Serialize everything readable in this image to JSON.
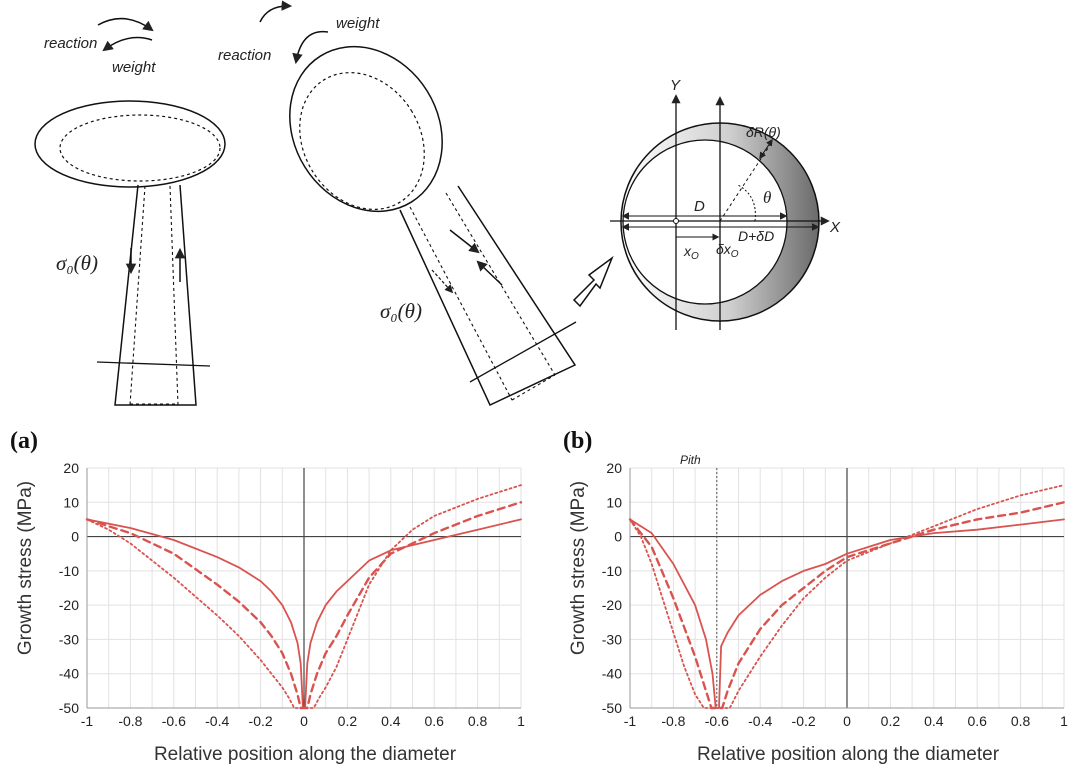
{
  "diagram": {
    "tree1": {
      "reaction_label": "reaction",
      "weight_label": "weight",
      "stress_label": "σ₀(θ)"
    },
    "tree2": {
      "reaction_label": "reaction",
      "weight_label": "weight",
      "stress_label": "σ₀(θ)"
    },
    "cross_section": {
      "y_axis_label": "Y",
      "x_axis_label": "X",
      "d_label": "D",
      "d_plus_label": "D+δD",
      "xo_label": "x",
      "xo_sub": "O",
      "dxo_label": "δx",
      "dxo_sub": "O",
      "theta_label": "θ",
      "dr_label": "δR(θ)"
    }
  },
  "chart_data": [
    {
      "panel_label": "(a)",
      "type": "line",
      "xlabel": "Relative position along the diameter",
      "ylabel": "Growth stress (MPa)",
      "xlim": [
        -1,
        1
      ],
      "ylim": [
        -50,
        20
      ],
      "xticks": [
        "-1",
        "-0.8",
        "-0.6",
        "-0.4",
        "-0.2",
        "0",
        "0.2",
        "0.4",
        "0.6",
        "0.8",
        "1"
      ],
      "yticks": [
        "20",
        "10",
        "0",
        "-10",
        "-20",
        "-30",
        "-40",
        "-50"
      ],
      "yticks_values": [
        20,
        10,
        0,
        -10,
        -20,
        -30,
        -40,
        -50
      ],
      "xticks_values": [
        -1,
        -0.8,
        -0.6,
        -0.4,
        -0.2,
        0,
        0.2,
        0.4,
        0.6,
        0.8,
        1
      ],
      "grid": true,
      "pith_label": "",
      "color": "#d9534f",
      "series": [
        {
          "style": "solid",
          "x": [
            -1,
            -0.8,
            -0.6,
            -0.4,
            -0.3,
            -0.2,
            -0.15,
            -0.1,
            -0.06,
            -0.03,
            -0.015,
            -0.005,
            0.005,
            0.015,
            0.03,
            0.06,
            0.1,
            0.15,
            0.2,
            0.3,
            0.4,
            0.6,
            0.8,
            1
          ],
          "y": [
            5,
            2.5,
            -1,
            -6,
            -9,
            -13,
            -16,
            -20,
            -25,
            -31,
            -37,
            -50,
            -50,
            -37,
            -31,
            -25,
            -20,
            -16,
            -13,
            -7,
            -4,
            -1,
            2,
            5
          ]
        },
        {
          "style": "dashed",
          "x": [
            -1,
            -0.8,
            -0.6,
            -0.4,
            -0.3,
            -0.2,
            -0.15,
            -0.1,
            -0.06,
            -0.03,
            -0.015,
            0.015,
            0.03,
            0.06,
            0.1,
            0.15,
            0.2,
            0.3,
            0.4,
            0.6,
            0.8,
            1
          ],
          "y": [
            5,
            1,
            -5,
            -14,
            -19,
            -25,
            -29,
            -34,
            -40,
            -46,
            -50,
            -50,
            -46,
            -40,
            -34,
            -29,
            -23,
            -12,
            -5,
            1,
            6,
            10
          ]
        },
        {
          "style": "dotted",
          "x": [
            -1,
            -0.9,
            -0.8,
            -0.6,
            -0.4,
            -0.3,
            -0.2,
            -0.15,
            -0.1,
            -0.07,
            -0.045,
            0.045,
            0.07,
            0.1,
            0.15,
            0.2,
            0.3,
            0.4,
            0.5,
            0.6,
            0.8,
            1
          ],
          "y": [
            5,
            2,
            -2,
            -12,
            -23,
            -29,
            -36,
            -40,
            -44,
            -47,
            -50,
            -50,
            -47,
            -44,
            -38,
            -30,
            -14,
            -4,
            2,
            6,
            11,
            15
          ]
        }
      ]
    },
    {
      "panel_label": "(b)",
      "type": "line",
      "xlabel": "Relative position along the diameter",
      "ylabel": "Growth stress (MPa)",
      "xlim": [
        -1,
        1
      ],
      "ylim": [
        -50,
        20
      ],
      "xticks": [
        "-1",
        "-0.8",
        "-0.6",
        "-0.4",
        "-0.2",
        "0",
        "0.2",
        "0.4",
        "0.6",
        "0.8",
        "1"
      ],
      "yticks": [
        "20",
        "10",
        "0",
        "-10",
        "-20",
        "-30",
        "-40",
        "-50"
      ],
      "yticks_values": [
        20,
        10,
        0,
        -10,
        -20,
        -30,
        -40,
        -50
      ],
      "xticks_values": [
        -1,
        -0.8,
        -0.6,
        -0.4,
        -0.2,
        0,
        0.2,
        0.4,
        0.6,
        0.8,
        1
      ],
      "grid": true,
      "pith_label": "Pith",
      "pith_x": -0.6,
      "color": "#d9534f",
      "series": [
        {
          "style": "solid",
          "x": [
            -1,
            -0.9,
            -0.8,
            -0.7,
            -0.65,
            -0.62,
            -0.605,
            -0.59,
            -0.58,
            -0.55,
            -0.5,
            -0.4,
            -0.3,
            -0.2,
            -0.1,
            0,
            0.2,
            0.4,
            0.6,
            0.8,
            1
          ],
          "y": [
            5,
            1,
            -8,
            -20,
            -30,
            -40,
            -50,
            -50,
            -32,
            -28,
            -23,
            -17,
            -13,
            -10,
            -8,
            -5,
            -1,
            1,
            2,
            3.5,
            5
          ]
        },
        {
          "style": "dashed",
          "x": [
            -1,
            -0.9,
            -0.8,
            -0.7,
            -0.65,
            -0.625,
            -0.575,
            -0.55,
            -0.5,
            -0.4,
            -0.3,
            -0.2,
            -0.1,
            0,
            0.2,
            0.4,
            0.6,
            0.8,
            1
          ],
          "y": [
            5,
            -3,
            -18,
            -35,
            -45,
            -50,
            -50,
            -45,
            -37,
            -27,
            -20,
            -15,
            -10,
            -6,
            -2,
            2,
            5,
            7,
            10
          ]
        },
        {
          "style": "dotted",
          "x": [
            -1,
            -0.95,
            -0.9,
            -0.85,
            -0.8,
            -0.75,
            -0.7,
            -0.66,
            -0.54,
            -0.5,
            -0.4,
            -0.3,
            -0.2,
            -0.1,
            0,
            0.2,
            0.4,
            0.6,
            0.8,
            1
          ],
          "y": [
            5,
            0,
            -8,
            -18,
            -28,
            -38,
            -46,
            -50,
            -50,
            -45,
            -35,
            -26,
            -18,
            -12,
            -7,
            -2,
            3,
            8,
            12,
            15
          ]
        }
      ]
    }
  ]
}
